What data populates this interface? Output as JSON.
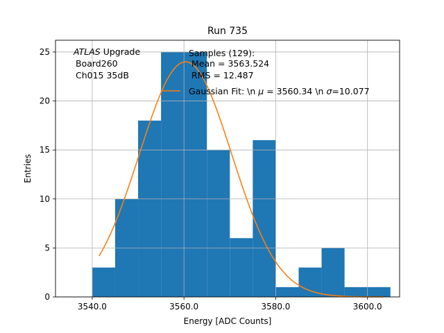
{
  "chart_data": {
    "type": "bar",
    "title": "Run 735",
    "xlabel": "Energy [ADC Counts]",
    "ylabel": "Entries",
    "xlim": [
      3532,
      3607
    ],
    "ylim": [
      0,
      26.2
    ],
    "grid": true,
    "legend_placement": "top-right",
    "x_ticks": [
      {
        "value": 3540,
        "label": "3540.0"
      },
      {
        "value": 3560,
        "label": "3560.0"
      },
      {
        "value": 3580,
        "label": "3580.0"
      },
      {
        "value": 3600,
        "label": "3600.0"
      }
    ],
    "y_ticks": [
      {
        "value": 0,
        "label": "0"
      },
      {
        "value": 5,
        "label": "5"
      },
      {
        "value": 10,
        "label": "10"
      },
      {
        "value": 15,
        "label": "15"
      },
      {
        "value": 20,
        "label": "20"
      },
      {
        "value": 25,
        "label": "25"
      }
    ],
    "histogram": {
      "color": "#1f77b4",
      "bins": [
        {
          "x0": 3540,
          "x1": 3545,
          "count": 3
        },
        {
          "x0": 3545,
          "x1": 3550,
          "count": 10
        },
        {
          "x0": 3550,
          "x1": 3555,
          "count": 18
        },
        {
          "x0": 3555,
          "x1": 3560,
          "count": 25
        },
        {
          "x0": 3560,
          "x1": 3565,
          "count": 25
        },
        {
          "x0": 3565,
          "x1": 3570,
          "count": 15
        },
        {
          "x0": 3570,
          "x1": 3575,
          "count": 6
        },
        {
          "x0": 3575,
          "x1": 3580,
          "count": 16
        },
        {
          "x0": 3580,
          "x1": 3585,
          "count": 1
        },
        {
          "x0": 3585,
          "x1": 3590,
          "count": 3
        },
        {
          "x0": 3590,
          "x1": 3595,
          "count": 5
        },
        {
          "x0": 3595,
          "x1": 3600,
          "count": 1
        },
        {
          "x0": 3600,
          "x1": 3605,
          "count": 1
        }
      ]
    },
    "fit": {
      "color": "#ff7f0e",
      "mu": 3560.34,
      "sigma": 10.077,
      "amplitude": 24,
      "x_range": [
        3541.5,
        3603.5
      ]
    },
    "annotation": {
      "atlas_italic": "ATLAS",
      "line1_rest": " Upgrade",
      "line2": "Board260",
      "line3": "Ch015 35dB"
    },
    "stats": {
      "line1": "Samples (129):",
      "line2": "Mean = 3563.524",
      "line3": "RMS = 12.487"
    },
    "legend": {
      "fit_prefix": "Gaussian Fit: \\n ",
      "mu_symbol": "μ",
      "mu_text": " = 3560.34 \\n ",
      "sigma_symbol": "σ",
      "sigma_text": "=10.077"
    }
  }
}
